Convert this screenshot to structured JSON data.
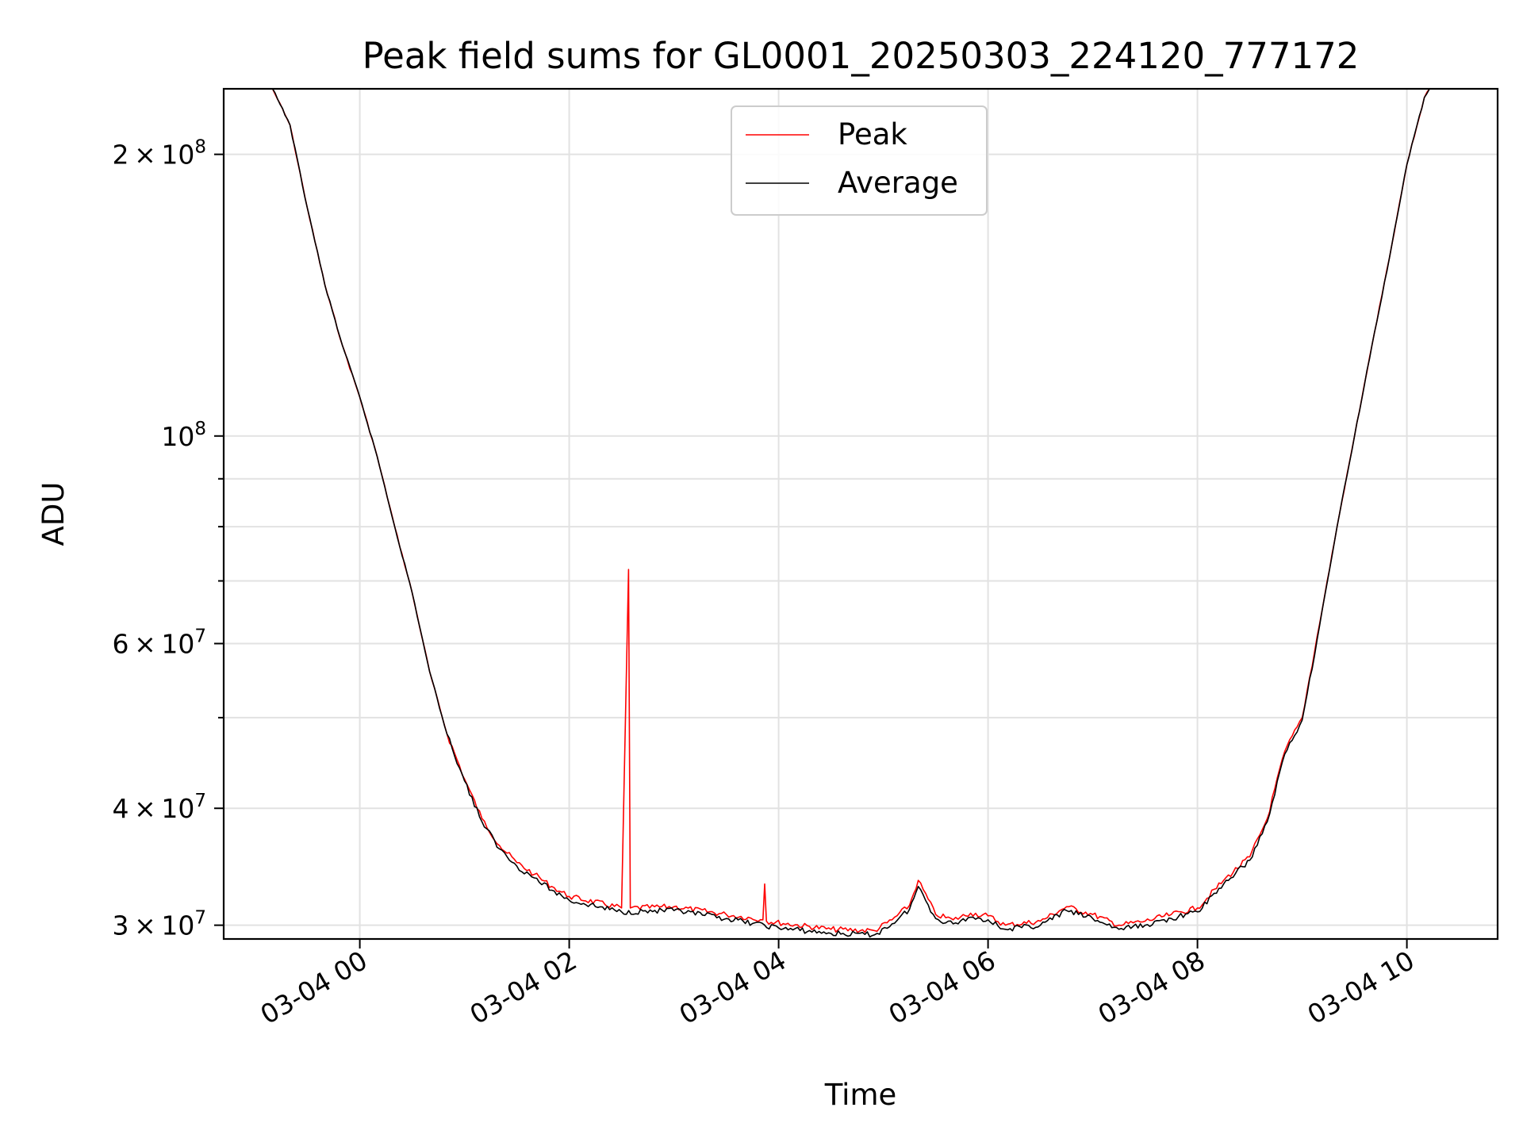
{
  "chart_data": {
    "type": "line",
    "title": "Peak field sums for GL0001_20250303_224120_777172",
    "xlabel": "Time",
    "ylabel": "ADU",
    "yscale": "log",
    "xlim": [
      "2025-03-03 22:42",
      "2025-03-04 10:52"
    ],
    "ylim": [
      29000000,
      235000000
    ],
    "grid": true,
    "legend_position": "top-center",
    "x_ticks": [
      {
        "value": "2025-03-04 00:00",
        "label": "03-04 00"
      },
      {
        "value": "2025-03-04 02:00",
        "label": "03-04 02"
      },
      {
        "value": "2025-03-04 04:00",
        "label": "03-04 04"
      },
      {
        "value": "2025-03-04 06:00",
        "label": "03-04 06"
      },
      {
        "value": "2025-03-04 08:00",
        "label": "03-04 08"
      },
      {
        "value": "2025-03-04 10:00",
        "label": "03-04 10"
      }
    ],
    "y_major_ticks": [
      {
        "value": 30000000,
        "mant": "3",
        "exp": "7"
      },
      {
        "value": 40000000,
        "mant": "4",
        "exp": "7"
      },
      {
        "value": 60000000,
        "mant": "6",
        "exp": "7"
      },
      {
        "value": 100000000,
        "mant": "",
        "exp": "8"
      },
      {
        "value": 200000000,
        "mant": "2",
        "exp": "8"
      }
    ],
    "y_minor_ticks": [
      50000000,
      70000000,
      80000000,
      90000000
    ],
    "series": [
      {
        "name": "Peak",
        "color": "#ff0000",
        "points": [
          [
            "2025-03-03 22:42",
            235000000
          ],
          [
            "2025-03-03 23:10",
            235000000
          ],
          [
            "2025-03-03 23:20",
            215000000
          ],
          [
            "2025-03-03 23:30",
            175000000
          ],
          [
            "2025-03-03 23:40",
            145000000
          ],
          [
            "2025-03-03 23:50",
            125000000
          ],
          [
            "2025-03-04 00:00",
            110000000
          ],
          [
            "2025-03-04 00:10",
            95000000
          ],
          [
            "2025-03-04 00:20",
            80000000
          ],
          [
            "2025-03-04 00:30",
            68000000
          ],
          [
            "2025-03-04 00:40",
            56000000
          ],
          [
            "2025-03-04 00:50",
            48000000
          ],
          [
            "2025-03-04 01:00",
            43000000
          ],
          [
            "2025-03-04 01:10",
            39000000
          ],
          [
            "2025-03-04 01:20",
            36500000
          ],
          [
            "2025-03-04 01:30",
            35000000
          ],
          [
            "2025-03-04 01:40",
            34000000
          ],
          [
            "2025-03-04 01:50",
            33000000
          ],
          [
            "2025-03-04 02:00",
            32200000
          ],
          [
            "2025-03-04 02:30",
            31300000
          ],
          [
            "2025-03-04 02:34",
            72000000
          ],
          [
            "2025-03-04 02:35",
            31300000
          ],
          [
            "2025-03-04 03:00",
            31400000
          ],
          [
            "2025-03-04 03:30",
            30800000
          ],
          [
            "2025-03-04 03:51",
            30400000
          ],
          [
            "2025-03-04 03:52",
            33200000
          ],
          [
            "2025-03-04 03:53",
            30300000
          ],
          [
            "2025-03-04 04:30",
            29700000
          ],
          [
            "2025-03-04 04:55",
            29600000
          ],
          [
            "2025-03-04 05:05",
            30400000
          ],
          [
            "2025-03-04 05:15",
            31500000
          ],
          [
            "2025-03-04 05:20",
            33500000
          ],
          [
            "2025-03-04 05:30",
            30800000
          ],
          [
            "2025-03-04 05:40",
            30400000
          ],
          [
            "2025-03-04 05:50",
            30900000
          ],
          [
            "2025-03-04 06:00",
            30700000
          ],
          [
            "2025-03-04 06:10",
            30000000
          ],
          [
            "2025-03-04 06:30",
            30300000
          ],
          [
            "2025-03-04 06:45",
            31400000
          ],
          [
            "2025-03-04 07:00",
            30800000
          ],
          [
            "2025-03-04 07:15",
            30000000
          ],
          [
            "2025-03-04 07:30",
            30300000
          ],
          [
            "2025-03-04 07:45",
            30800000
          ],
          [
            "2025-03-04 08:00",
            31300000
          ],
          [
            "2025-03-04 08:15",
            33500000
          ],
          [
            "2025-03-04 08:30",
            35500000
          ],
          [
            "2025-03-04 08:40",
            39000000
          ],
          [
            "2025-03-04 08:50",
            46000000
          ],
          [
            "2025-03-04 09:00",
            50000000
          ],
          [
            "2025-03-04 09:10",
            63000000
          ],
          [
            "2025-03-04 09:20",
            80000000
          ],
          [
            "2025-03-04 09:30",
            100000000
          ],
          [
            "2025-03-04 09:40",
            125000000
          ],
          [
            "2025-03-04 09:50",
            155000000
          ],
          [
            "2025-03-04 10:00",
            195000000
          ],
          [
            "2025-03-04 10:10",
            230000000
          ],
          [
            "2025-03-04 10:13",
            235000000
          ],
          [
            "2025-03-04 10:52",
            235000000
          ]
        ]
      },
      {
        "name": "Average",
        "color": "#000000",
        "points": [
          [
            "2025-03-03 22:42",
            235000000
          ],
          [
            "2025-03-03 23:10",
            235000000
          ],
          [
            "2025-03-03 23:20",
            215000000
          ],
          [
            "2025-03-03 23:30",
            175000000
          ],
          [
            "2025-03-03 23:40",
            145000000
          ],
          [
            "2025-03-03 23:50",
            125000000
          ],
          [
            "2025-03-04 00:00",
            110000000
          ],
          [
            "2025-03-04 00:10",
            95000000
          ],
          [
            "2025-03-04 00:20",
            80000000
          ],
          [
            "2025-03-04 00:30",
            68000000
          ],
          [
            "2025-03-04 00:40",
            56000000
          ],
          [
            "2025-03-04 00:50",
            48000000
          ],
          [
            "2025-03-04 01:00",
            42800000
          ],
          [
            "2025-03-04 01:10",
            38700000
          ],
          [
            "2025-03-04 01:20",
            36200000
          ],
          [
            "2025-03-04 01:30",
            34700000
          ],
          [
            "2025-03-04 01:40",
            33700000
          ],
          [
            "2025-03-04 01:50",
            32700000
          ],
          [
            "2025-03-04 02:00",
            31900000
          ],
          [
            "2025-03-04 02:30",
            31000000
          ],
          [
            "2025-03-04 03:00",
            31100000
          ],
          [
            "2025-03-04 03:30",
            30500000
          ],
          [
            "2025-03-04 04:00",
            29800000
          ],
          [
            "2025-03-04 04:30",
            29400000
          ],
          [
            "2025-03-04 04:55",
            29300000
          ],
          [
            "2025-03-04 05:05",
            30100000
          ],
          [
            "2025-03-04 05:15",
            31200000
          ],
          [
            "2025-03-04 05:20",
            33000000
          ],
          [
            "2025-03-04 05:30",
            30500000
          ],
          [
            "2025-03-04 05:40",
            30100000
          ],
          [
            "2025-03-04 05:50",
            30600000
          ],
          [
            "2025-03-04 06:00",
            30400000
          ],
          [
            "2025-03-04 06:10",
            29700000
          ],
          [
            "2025-03-04 06:30",
            30000000
          ],
          [
            "2025-03-04 06:45",
            31100000
          ],
          [
            "2025-03-04 07:00",
            30500000
          ],
          [
            "2025-03-04 07:15",
            29700000
          ],
          [
            "2025-03-04 07:30",
            30000000
          ],
          [
            "2025-03-04 07:45",
            30500000
          ],
          [
            "2025-03-04 08:00",
            31000000
          ],
          [
            "2025-03-04 08:15",
            33200000
          ],
          [
            "2025-03-04 08:30",
            35200000
          ],
          [
            "2025-03-04 08:40",
            38700000
          ],
          [
            "2025-03-04 08:50",
            45700000
          ],
          [
            "2025-03-04 09:00",
            49700000
          ],
          [
            "2025-03-04 09:10",
            62700000
          ],
          [
            "2025-03-04 09:20",
            80000000
          ],
          [
            "2025-03-04 09:30",
            100000000
          ],
          [
            "2025-03-04 09:40",
            125000000
          ],
          [
            "2025-03-04 09:50",
            155000000
          ],
          [
            "2025-03-04 10:00",
            195000000
          ],
          [
            "2025-03-04 10:10",
            230000000
          ],
          [
            "2025-03-04 10:13",
            235000000
          ],
          [
            "2025-03-04 10:52",
            235000000
          ]
        ]
      }
    ]
  }
}
